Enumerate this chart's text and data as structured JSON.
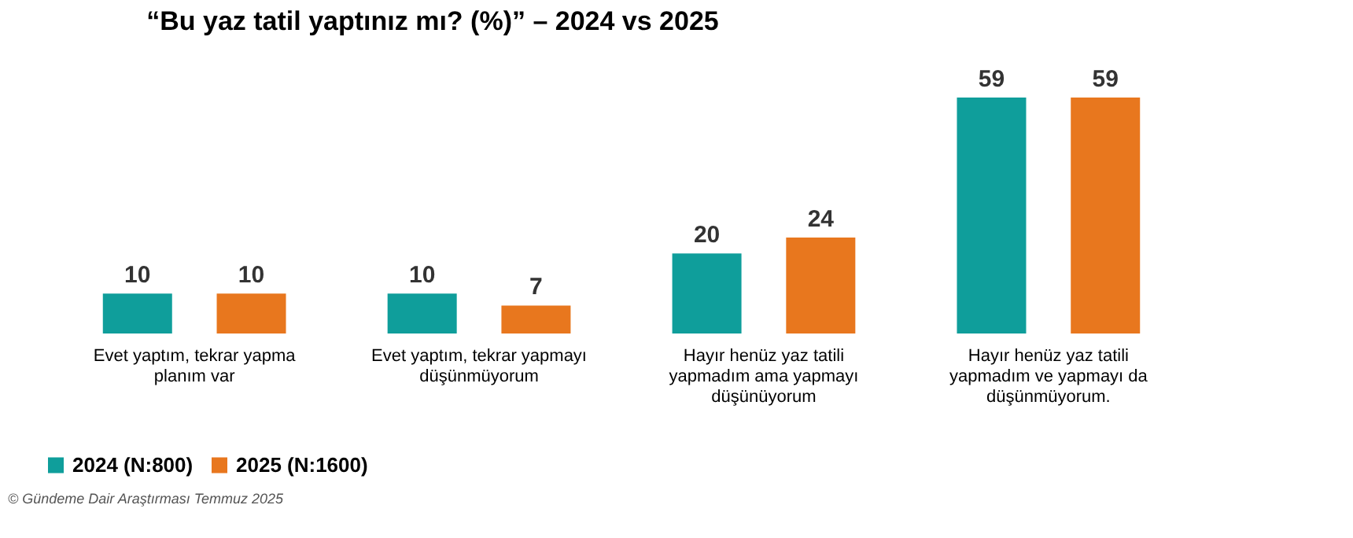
{
  "chart_data": {
    "type": "bar",
    "title": "“Bu yaz tatil yaptınız mı? (%)” – 2024 vs 2025",
    "categories": [
      "Evet yaptım, tekrar yapma planım var",
      "Evet yaptım, tekrar yapmayı düşünmüyorum",
      "Hayır henüz  yaz tatili yapmadım ama yapmayı düşünüyorum",
      "Hayır henüz yaz tatili yapmadım ve yapmayı da düşünmüyorum."
    ],
    "series": [
      {
        "name": "2024 (N:800)",
        "color": "#0f9e9b",
        "values": [
          10,
          10,
          20,
          59
        ]
      },
      {
        "name": "2025 (N:1600)",
        "color": "#e8771e",
        "values": [
          10,
          7,
          24,
          59
        ]
      }
    ],
    "data_labels": true,
    "legend": "bottom",
    "grid": false,
    "annotations": [
      "© Gündeme Dair Araştırması  Temmuz 2025"
    ]
  }
}
